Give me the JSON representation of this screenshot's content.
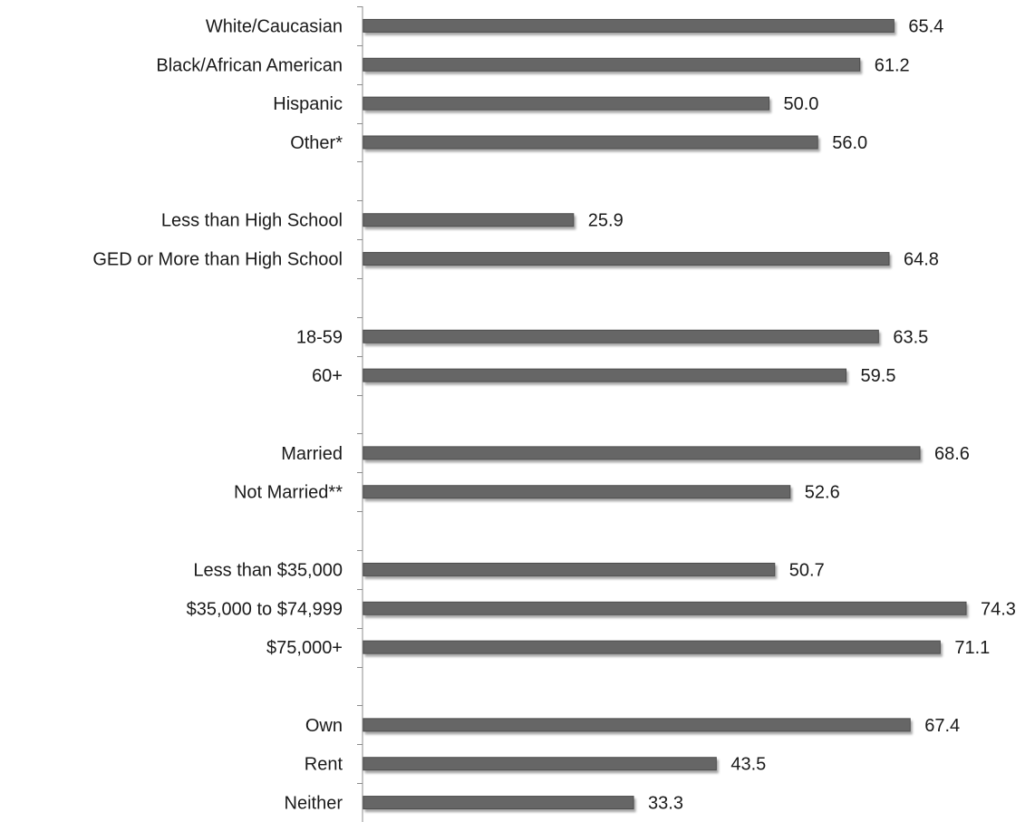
{
  "chart_data": {
    "type": "bar",
    "orientation": "horizontal",
    "categories": [
      "White/Caucasian",
      "Black/African American",
      "Hispanic",
      "Other*",
      "",
      "Less than High School",
      "GED or More than High School",
      "",
      "18-59",
      "60+",
      "",
      "Married",
      "Not Married**",
      "",
      "Less than $35,000",
      "$35,000 to $74,999",
      "$75,000+",
      "",
      "Own",
      "Rent",
      "Neither"
    ],
    "values": [
      65.4,
      61.2,
      50.0,
      56.0,
      null,
      25.9,
      64.8,
      null,
      63.5,
      59.5,
      null,
      68.6,
      52.6,
      null,
      50.7,
      74.3,
      71.1,
      null,
      67.4,
      43.5,
      33.3
    ],
    "value_labels": [
      "65.4",
      "61.2",
      "50.0",
      "56.0",
      "",
      "25.9",
      "64.8",
      "",
      "63.5",
      "59.5",
      "",
      "68.6",
      "52.6",
      "",
      "50.7",
      "74.3",
      "71.1",
      "",
      "67.4",
      "43.5",
      "33.3"
    ],
    "title": "",
    "xlabel": "",
    "ylabel": "",
    "xlim": [
      0,
      78
    ],
    "grid": false,
    "legend": "none",
    "colors": {
      "bar": "#666666",
      "bar_edge": "#4d4d4d",
      "axis": "#8c8c8c",
      "text": "#1a1a1a"
    }
  }
}
